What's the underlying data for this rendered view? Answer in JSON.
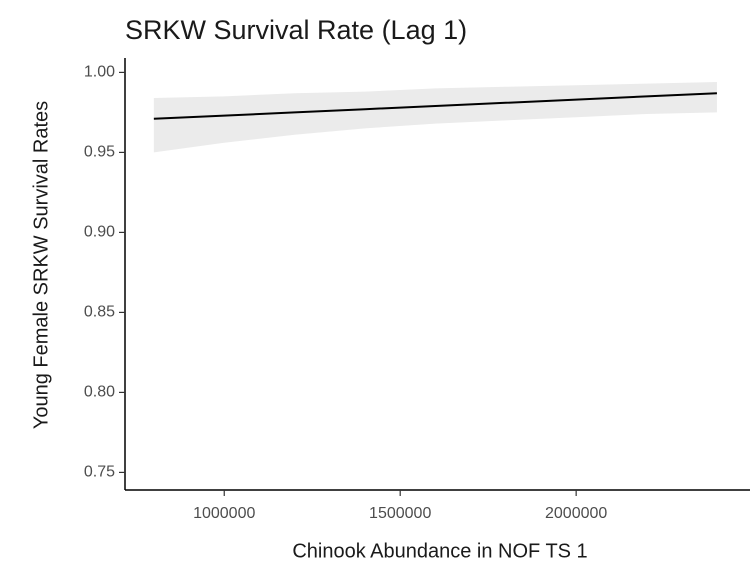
{
  "chart_data": {
    "type": "line-ribbon",
    "title": "SRKW Survival Rate (Lag 1)",
    "x_label": "Chinook Abundance in  NOF  TS  1",
    "y_label": "Young Female SRKW Survival Rates",
    "x": [
      800000,
      1000000,
      1200000,
      1400000,
      1600000,
      1800000,
      2000000,
      2200000,
      2400000
    ],
    "values": [
      0.971,
      0.973,
      0.975,
      0.977,
      0.979,
      0.981,
      0.983,
      0.985,
      0.987
    ],
    "lower": [
      0.95,
      0.956,
      0.961,
      0.965,
      0.968,
      0.97,
      0.972,
      0.974,
      0.975
    ],
    "upper": [
      0.984,
      0.985,
      0.987,
      0.988,
      0.99,
      0.991,
      0.992,
      0.993,
      0.994
    ],
    "color": "#000000",
    "ribbon_color": "#ebebeb",
    "xlim": [
      718000,
      2494000
    ],
    "ylim": [
      0.739,
      1.009
    ],
    "xticks": [
      1000000,
      1500000,
      2000000
    ],
    "yticks": [
      {
        "value": 1,
        "label": "1.00"
      },
      0.95,
      {
        "value": 0.9,
        "label": "0.90"
      },
      0.85,
      {
        "value": 0.8,
        "label": "0.80"
      },
      0.75
    ],
    "grid": false
  }
}
